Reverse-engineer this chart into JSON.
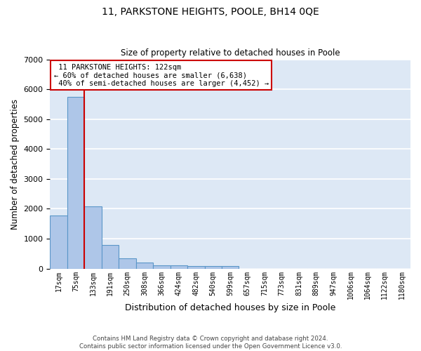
{
  "title": "11, PARKSTONE HEIGHTS, POOLE, BH14 0QE",
  "subtitle": "Size of property relative to detached houses in Poole",
  "xlabel": "Distribution of detached houses by size in Poole",
  "ylabel": "Number of detached properties",
  "bar_color": "#aec6e8",
  "bar_edge_color": "#5a96c8",
  "background_color": "#dde8f5",
  "grid_color": "#ffffff",
  "categories": [
    "17sqm",
    "75sqm",
    "133sqm",
    "191sqm",
    "250sqm",
    "308sqm",
    "366sqm",
    "424sqm",
    "482sqm",
    "540sqm",
    "599sqm",
    "657sqm",
    "715sqm",
    "773sqm",
    "831sqm",
    "889sqm",
    "947sqm",
    "1006sqm",
    "1064sqm",
    "1122sqm",
    "1180sqm"
  ],
  "values": [
    1780,
    5750,
    2080,
    790,
    340,
    190,
    115,
    100,
    85,
    75,
    80,
    0,
    0,
    0,
    0,
    0,
    0,
    0,
    0,
    0,
    0
  ],
  "ylim": [
    0,
    7000
  ],
  "yticks": [
    0,
    1000,
    2000,
    3000,
    4000,
    5000,
    6000,
    7000
  ],
  "property_name": "11 PARKSTONE HEIGHTS: 122sqm",
  "pct_smaller": 60,
  "n_smaller": 6638,
  "pct_larger": 40,
  "n_larger": 4452,
  "vline_x_index": 1.5,
  "annotation_box_color": "#cc0000",
  "footer_line1": "Contains HM Land Registry data © Crown copyright and database right 2024.",
  "footer_line2": "Contains public sector information licensed under the Open Government Licence v3.0."
}
